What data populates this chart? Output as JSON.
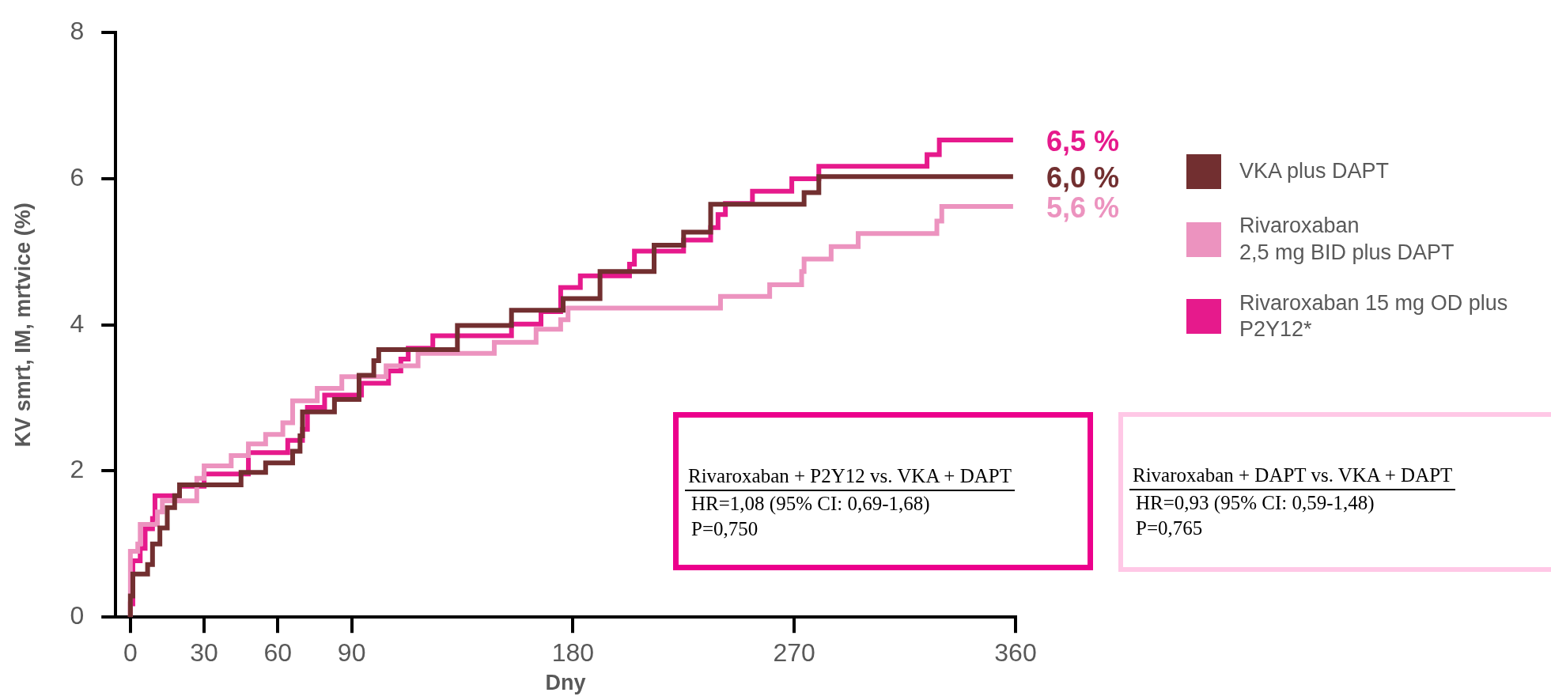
{
  "chart_data": {
    "type": "step",
    "xlabel": "Dny",
    "ylabel": "KV smrt, IM, mrtvice (%)",
    "xlim": [
      -6,
      360
    ],
    "xticks": [
      0,
      30,
      60,
      90,
      180,
      270,
      360
    ],
    "ylim": [
      0,
      8
    ],
    "yticks": [
      0,
      2,
      4,
      6,
      8
    ],
    "grid": false,
    "legend": "right",
    "series": [
      {
        "name": "VKA plus DAPT",
        "color": "#722f30",
        "x": [
          0,
          1,
          7,
          9,
          12,
          15,
          18,
          20,
          45,
          55,
          66,
          69,
          70,
          83,
          93,
          99,
          101,
          133,
          155,
          176,
          191,
          213,
          225,
          236,
          274,
          280,
          340,
          359
        ],
        "values": [
          0,
          0.29,
          0.59,
          0.72,
          1.0,
          1.22,
          1.5,
          1.66,
          1.81,
          1.98,
          2.11,
          2.27,
          2.48,
          2.81,
          2.98,
          3.31,
          3.51,
          3.66,
          3.99,
          4.2,
          4.36,
          4.73,
          5.09,
          5.27,
          5.65,
          5.81,
          6.03,
          6.03
        ],
        "value_labels": [
          null,
          null,
          null,
          null,
          null,
          null,
          null,
          null,
          null,
          null,
          null,
          null,
          null,
          null,
          null,
          null,
          null,
          null,
          null,
          null,
          null,
          null,
          null,
          null,
          null,
          null,
          null,
          "6,0 %"
        ]
      },
      {
        "name": "Rivaroxaban\n2,5 mg BID plus DAPT",
        "color": "#ec93bf",
        "x": [
          0,
          3,
          4,
          11,
          13,
          27,
          30,
          41,
          48,
          55,
          62,
          66,
          76,
          86,
          104,
          117,
          148,
          165,
          175,
          178,
          240,
          260,
          273,
          274,
          285,
          296,
          328,
          330,
          336,
          359
        ],
        "values": [
          0,
          0.9,
          1.0,
          1.27,
          1.44,
          1.59,
          1.9,
          2.07,
          2.21,
          2.37,
          2.5,
          2.66,
          2.96,
          3.13,
          3.29,
          3.44,
          3.61,
          3.76,
          3.94,
          4.07,
          4.23,
          4.39,
          4.55,
          4.73,
          4.9,
          5.07,
          5.25,
          5.42,
          5.62,
          5.62
        ],
        "value_labels": [
          null,
          null,
          null,
          null,
          null,
          null,
          null,
          null,
          null,
          null,
          null,
          null,
          null,
          null,
          null,
          null,
          null,
          null,
          null,
          null,
          null,
          null,
          null,
          null,
          null,
          null,
          null,
          null,
          null,
          "5,6 %"
        ]
      },
      {
        "name": "Rivaroxaban 15 mg OD plus P2Y12*",
        "color": "#e61a8c",
        "x": [
          0,
          1,
          4,
          6,
          9,
          10,
          20,
          30,
          48,
          64,
          70,
          72,
          79,
          94,
          105,
          110,
          113,
          123,
          155,
          167,
          175,
          183,
          203,
          205,
          225,
          236,
          239,
          242,
          253,
          269,
          280,
          324,
          329,
          340,
          359
        ],
        "values": [
          0,
          0.18,
          0.77,
          0.94,
          1.21,
          1.35,
          1.66,
          1.79,
          1.96,
          2.25,
          2.42,
          2.57,
          2.87,
          3.04,
          3.2,
          3.37,
          3.53,
          3.68,
          3.85,
          4.01,
          4.18,
          4.51,
          4.67,
          4.83,
          5.01,
          5.16,
          5.33,
          5.51,
          5.66,
          5.83,
          6.0,
          6.17,
          6.33,
          6.53,
          6.53
        ],
        "value_labels": [
          null,
          null,
          null,
          null,
          null,
          null,
          null,
          null,
          null,
          null,
          null,
          null,
          null,
          null,
          null,
          null,
          null,
          null,
          null,
          null,
          null,
          null,
          null,
          null,
          null,
          null,
          null,
          null,
          null,
          null,
          null,
          null,
          null,
          null,
          "6,5 %"
        ]
      }
    ],
    "annotations": [
      "Rivaroxaban + P2Y12 vs. VKA + DAPT\nHR=1,08 (95% CI: 0,69-1,68)\nP=0,750",
      "Rivaroxaban + DAPT vs. VKA + DAPT\nHR=0,93 (95% CI: 0,59-1,48)\nP=0,765"
    ]
  }
}
